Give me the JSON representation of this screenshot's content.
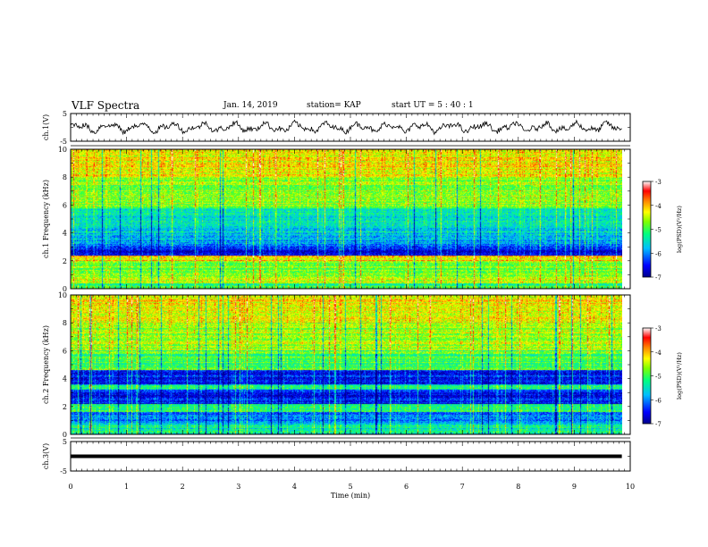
{
  "header": {
    "title": "VLF Spectra",
    "date": "Jan. 14, 2019",
    "station": "station= KAP",
    "start": "start  UT =  5 : 40 : 1"
  },
  "chart_data": [
    {
      "type": "line",
      "name": "ch.1 waveform",
      "ylabel": "ch.1(V)",
      "ylim": [
        -5,
        5
      ],
      "yticks": [
        "5",
        "-5"
      ],
      "xlim": [
        0,
        10
      ],
      "data_end_x": 9.85,
      "approx_amplitude": 2,
      "color": "#000000"
    },
    {
      "type": "heatmap",
      "name": "ch.1 spectrogram",
      "ylabel": "ch.1  Frequency (kHz)",
      "ylim": [
        0,
        10
      ],
      "yticks": [
        "0",
        "2",
        "4",
        "6",
        "8",
        "10"
      ],
      "xlim": [
        0,
        10
      ],
      "data_end_x": 9.85,
      "colorbar": {
        "label": "log(PSD)(V²/Hz)",
        "range": [
          -7,
          -3
        ],
        "ticks": [
          "-3",
          "-4",
          "-5",
          "-6",
          "-7"
        ]
      },
      "approx_bands_logpsd": [
        {
          "f": [
            0.0,
            0.4
          ],
          "v": -5.2
        },
        {
          "f": [
            0.4,
            1.2
          ],
          "v": -4.6
        },
        {
          "f": [
            1.2,
            2.0
          ],
          "v": -4.8
        },
        {
          "f": [
            2.0,
            2.4
          ],
          "v": -4.2
        },
        {
          "f": [
            2.4,
            3.0
          ],
          "v": -6.6
        },
        {
          "f": [
            3.0,
            3.8
          ],
          "v": -6.0
        },
        {
          "f": [
            3.8,
            4.4
          ],
          "v": -5.6
        },
        {
          "f": [
            4.4,
            5.8
          ],
          "v": -5.4
        },
        {
          "f": [
            5.8,
            8.0
          ],
          "v": -4.7
        },
        {
          "f": [
            8.0,
            10.0
          ],
          "v": -4.3
        }
      ]
    },
    {
      "type": "heatmap",
      "name": "ch.2 spectrogram",
      "ylabel": "ch.2  Frequency (kHz)",
      "ylim": [
        0,
        10
      ],
      "yticks": [
        "0",
        "2",
        "4",
        "6",
        "8",
        "10"
      ],
      "xlim": [
        0,
        10
      ],
      "data_end_x": 9.85,
      "colorbar": {
        "label": "log(PSD)(V²/Hz)",
        "range": [
          -7,
          -3
        ],
        "ticks": [
          "-3",
          "-4",
          "-5",
          "-6",
          "-7"
        ]
      },
      "approx_bands_logpsd": [
        {
          "f": [
            0.0,
            0.8
          ],
          "v": -5.4
        },
        {
          "f": [
            0.8,
            1.6
          ],
          "v": -6.0
        },
        {
          "f": [
            1.6,
            2.2
          ],
          "v": -5.2
        },
        {
          "f": [
            2.2,
            3.2
          ],
          "v": -6.5
        },
        {
          "f": [
            3.2,
            3.6
          ],
          "v": -5.4
        },
        {
          "f": [
            3.6,
            4.6
          ],
          "v": -6.5
        },
        {
          "f": [
            4.6,
            6.0
          ],
          "v": -5.0
        },
        {
          "f": [
            6.0,
            8.0
          ],
          "v": -4.6
        },
        {
          "f": [
            8.0,
            10.0
          ],
          "v": -4.3
        }
      ]
    },
    {
      "type": "line",
      "name": "ch.3 waveform",
      "ylabel": "ch.3(V)",
      "ylim": [
        -5,
        5
      ],
      "yticks": [
        "5",
        "-5"
      ],
      "xlim": [
        0,
        10
      ],
      "xticks": [
        "0",
        "1",
        "2",
        "3",
        "4",
        "5",
        "6",
        "7",
        "8",
        "9",
        "10"
      ],
      "xlabel": "Time (min)",
      "data_end_x": 9.85,
      "approx_constant_value": 0,
      "color": "#000000"
    }
  ],
  "colors": {
    "background": "#ffffff",
    "axis": "#000000",
    "colormap": [
      "#00008b",
      "#0000ff",
      "#00bfff",
      "#00ff80",
      "#80ff00",
      "#ffff00",
      "#ff8000",
      "#ff0000",
      "#ffffff"
    ]
  }
}
